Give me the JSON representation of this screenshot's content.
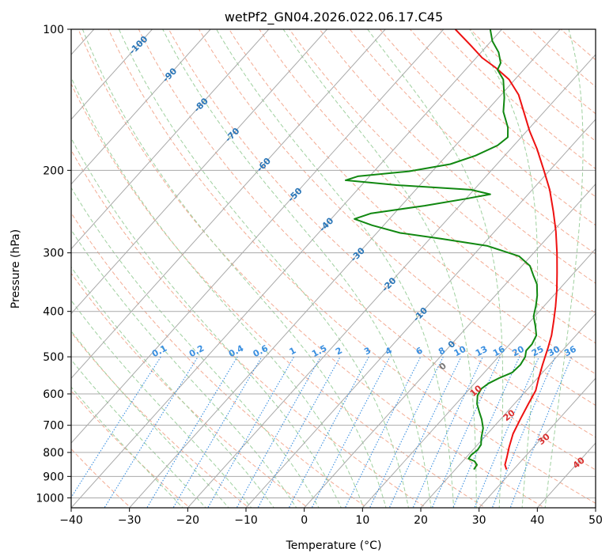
{
  "chart_data": {
    "type": "skewt",
    "title": "wetPf2_GN04.2026.022.06.17.C45",
    "xlabel": "Temperature (°C)",
    "ylabel": "Pressure (hPa)",
    "xlim": [
      -40,
      50
    ],
    "ylim": [
      1050,
      100
    ],
    "y_scale": "log",
    "x_ticks": [
      -40,
      -30,
      -20,
      -10,
      0,
      10,
      20,
      30,
      40,
      50
    ],
    "y_ticks": [
      100,
      200,
      300,
      400,
      500,
      600,
      700,
      800,
      900,
      1000
    ],
    "grid": true,
    "colors": {
      "temperature": "#ee1111",
      "dewpoint": "#118811",
      "isotherm": "#a9a9a9",
      "dry_adiabat": "#f3ab93",
      "moist_adiabat": "#9fd09f",
      "mixing_ratio": "#3a8fe0",
      "dry_adiabat_label": "#d83030",
      "isotherm_label": "#2a76b8"
    },
    "series": [
      {
        "key": "temperature",
        "points": [
          {
            "p": 870,
            "t": 28.8
          },
          {
            "p": 850,
            "t": 27.8
          },
          {
            "p": 820,
            "t": 27.0
          },
          {
            "p": 780,
            "t": 25.8
          },
          {
            "p": 730,
            "t": 24.4
          },
          {
            "p": 680,
            "t": 23.4
          },
          {
            "p": 630,
            "t": 22.4
          },
          {
            "p": 590,
            "t": 21.6
          },
          {
            "p": 560,
            "t": 20.4
          },
          {
            "p": 520,
            "t": 18.8
          },
          {
            "p": 480,
            "t": 17.2
          },
          {
            "p": 450,
            "t": 15.8
          },
          {
            "p": 420,
            "t": 14.0
          },
          {
            "p": 390,
            "t": 12.0
          },
          {
            "p": 360,
            "t": 9.7
          },
          {
            "p": 330,
            "t": 7.0
          },
          {
            "p": 300,
            "t": 4.0
          },
          {
            "p": 270,
            "t": 0.5
          },
          {
            "p": 245,
            "t": -3.0
          },
          {
            "p": 220,
            "t": -7.0
          },
          {
            "p": 200,
            "t": -11.0
          },
          {
            "p": 180,
            "t": -15.5
          },
          {
            "p": 165,
            "t": -19.5
          },
          {
            "p": 150,
            "t": -23.5
          },
          {
            "p": 138,
            "t": -27.0
          },
          {
            "p": 128,
            "t": -31.0
          },
          {
            "p": 121,
            "t": -35.0
          },
          {
            "p": 115,
            "t": -39.0
          },
          {
            "p": 108,
            "t": -43.0
          },
          {
            "p": 100,
            "t": -48.0
          }
        ]
      },
      {
        "key": "dewpoint",
        "points": [
          {
            "p": 870,
            "t": 23.2
          },
          {
            "p": 850,
            "t": 23.0
          },
          {
            "p": 835,
            "t": 22.0
          },
          {
            "p": 825,
            "t": 20.6
          },
          {
            "p": 810,
            "t": 20.5
          },
          {
            "p": 790,
            "t": 20.8
          },
          {
            "p": 770,
            "t": 20.6
          },
          {
            "p": 745,
            "t": 19.6
          },
          {
            "p": 710,
            "t": 18.4
          },
          {
            "p": 680,
            "t": 16.8
          },
          {
            "p": 655,
            "t": 15.2
          },
          {
            "p": 630,
            "t": 13.6
          },
          {
            "p": 605,
            "t": 12.4
          },
          {
            "p": 585,
            "t": 12.0
          },
          {
            "p": 570,
            "t": 12.4
          },
          {
            "p": 555,
            "t": 13.4
          },
          {
            "p": 540,
            "t": 14.8
          },
          {
            "p": 520,
            "t": 15.0
          },
          {
            "p": 500,
            "t": 14.6
          },
          {
            "p": 485,
            "t": 13.8
          },
          {
            "p": 470,
            "t": 13.8
          },
          {
            "p": 450,
            "t": 13.2
          },
          {
            "p": 430,
            "t": 11.6
          },
          {
            "p": 410,
            "t": 9.8
          },
          {
            "p": 390,
            "t": 8.6
          },
          {
            "p": 370,
            "t": 7.2
          },
          {
            "p": 350,
            "t": 5.4
          },
          {
            "p": 335,
            "t": 3.4
          },
          {
            "p": 320,
            "t": 1.4
          },
          {
            "p": 305,
            "t": -2.0
          },
          {
            "p": 290,
            "t": -9.0
          },
          {
            "p": 280,
            "t": -18.0
          },
          {
            "p": 272,
            "t": -26.0
          },
          {
            "p": 262,
            "t": -32.0
          },
          {
            "p": 254,
            "t": -36.0
          },
          {
            "p": 247,
            "t": -34.0
          },
          {
            "p": 238,
            "t": -26.0
          },
          {
            "p": 230,
            "t": -20.0
          },
          {
            "p": 225,
            "t": -16.5
          },
          {
            "p": 220,
            "t": -20.5
          },
          {
            "p": 215,
            "t": -34.0
          },
          {
            "p": 210,
            "t": -43.5
          },
          {
            "p": 206,
            "t": -42.0
          },
          {
            "p": 201,
            "t": -34.0
          },
          {
            "p": 194,
            "t": -28.0
          },
          {
            "p": 186,
            "t": -25.0
          },
          {
            "p": 177,
            "t": -22.8
          },
          {
            "p": 170,
            "t": -22.3
          },
          {
            "p": 162,
            "t": -23.8
          },
          {
            "p": 150,
            "t": -27.0
          },
          {
            "p": 140,
            "t": -29.0
          },
          {
            "p": 128,
            "t": -32.0
          },
          {
            "p": 122,
            "t": -34.5
          },
          {
            "p": 118,
            "t": -35.0
          },
          {
            "p": 112,
            "t": -37.0
          },
          {
            "p": 106,
            "t": -39.8
          },
          {
            "p": 100,
            "t": -42.0
          }
        ]
      }
    ],
    "mixing_ratio_labels": [
      "0.1",
      "0.2",
      "0.4",
      "0.6",
      "1",
      "1.5",
      "2",
      "3",
      "4",
      "6",
      "8",
      "10",
      "13",
      "16",
      "20",
      "25",
      "30",
      "36"
    ],
    "dry_adiabat_labels": [
      "10",
      "20",
      "30",
      "40"
    ],
    "isotherm_labels": [
      "-100",
      "-90",
      "-80",
      "-70",
      "-60",
      "-50",
      "-40",
      "-30",
      "-20",
      "-10",
      "0"
    ]
  }
}
